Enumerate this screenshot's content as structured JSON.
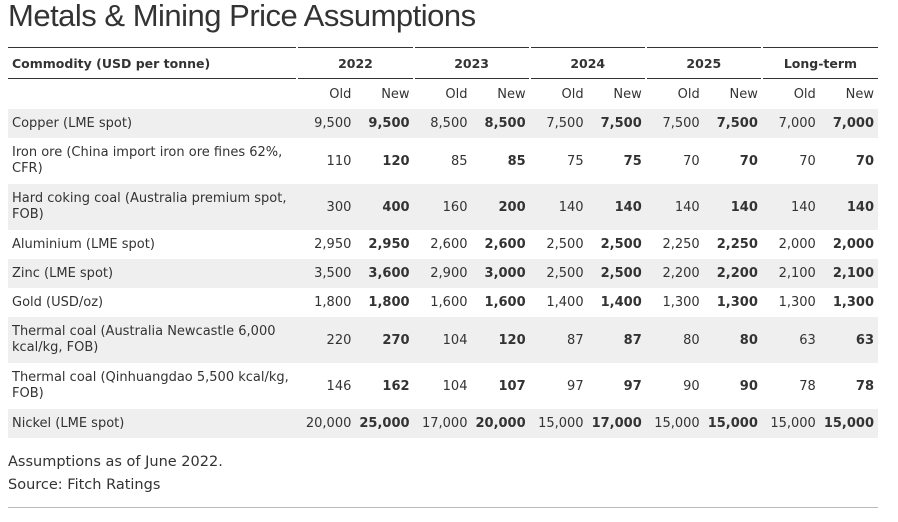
{
  "title": "Metals & Mining Price Assumptions",
  "table": {
    "header": {
      "label": "Commodity (USD per tonne)",
      "groups": [
        "2022",
        "2023",
        "2024",
        "2025",
        "Long-term"
      ],
      "subheaders": [
        "Old",
        "New",
        "Old",
        "New",
        "Old",
        "New",
        "Old",
        "New",
        "Old",
        "New"
      ]
    },
    "rows": [
      {
        "label": "Copper (LME spot)",
        "values": [
          "9,500",
          "9,500",
          "8,500",
          "8,500",
          "7,500",
          "7,500",
          "7,500",
          "7,500",
          "7,000",
          "7,000"
        ]
      },
      {
        "label": "Iron ore (China import iron ore fines 62%, CFR)",
        "values": [
          "110",
          "120",
          "85",
          "85",
          "75",
          "75",
          "70",
          "70",
          "70",
          "70"
        ]
      },
      {
        "label": "Hard coking coal (Australia premium spot, FOB)",
        "values": [
          "300",
          "400",
          "160",
          "200",
          "140",
          "140",
          "140",
          "140",
          "140",
          "140"
        ]
      },
      {
        "label": "Aluminium (LME spot)",
        "values": [
          "2,950",
          "2,950",
          "2,600",
          "2,600",
          "2,500",
          "2,500",
          "2,250",
          "2,250",
          "2,000",
          "2,000"
        ]
      },
      {
        "label": "Zinc (LME spot)",
        "values": [
          "3,500",
          "3,600",
          "2,900",
          "3,000",
          "2,500",
          "2,500",
          "2,200",
          "2,200",
          "2,100",
          "2,100"
        ]
      },
      {
        "label": "Gold (USD/oz)",
        "values": [
          "1,800",
          "1,800",
          "1,600",
          "1,600",
          "1,400",
          "1,400",
          "1,300",
          "1,300",
          "1,300",
          "1,300"
        ]
      },
      {
        "label": "Thermal coal (Australia Newcastle 6,000 kcal/kg, FOB)",
        "values": [
          "220",
          "270",
          "104",
          "120",
          "87",
          "87",
          "80",
          "80",
          "63",
          "63"
        ]
      },
      {
        "label": "Thermal coal (Qinhuangdao 5,500 kcal/kg, FOB)",
        "values": [
          "146",
          "162",
          "104",
          "107",
          "97",
          "97",
          "90",
          "90",
          "78",
          "78"
        ]
      },
      {
        "label": "Nickel (LME spot)",
        "values": [
          "20,000",
          "25,000",
          "17,000",
          "20,000",
          "15,000",
          "17,000",
          "15,000",
          "15,000",
          "15,000",
          "15,000"
        ]
      }
    ]
  },
  "notes": [
    "Assumptions as of June 2022.",
    "Source: Fitch Ratings"
  ]
}
